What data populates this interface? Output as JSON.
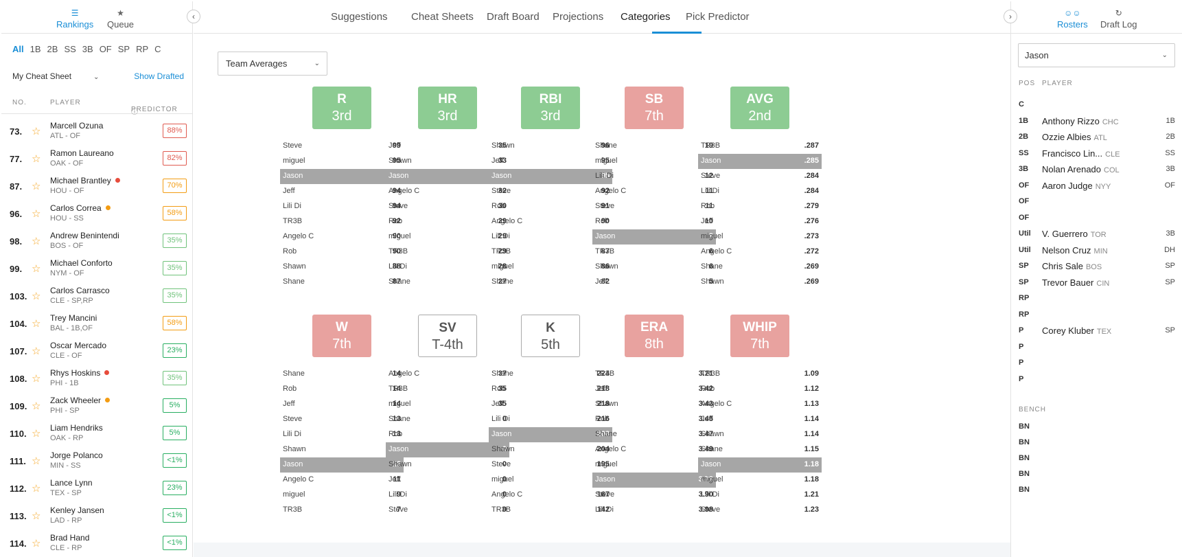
{
  "left": {
    "tabs": [
      {
        "label": "Rankings",
        "icon": "list-icon",
        "active": true
      },
      {
        "label": "Queue",
        "icon": "star-icon",
        "active": false
      }
    ],
    "positions": [
      "All",
      "1B",
      "2B",
      "SS",
      "3B",
      "OF",
      "SP",
      "RP",
      "C"
    ],
    "sheet_select": "My Cheat Sheet",
    "show_drafted": "Show Drafted",
    "col_no": "NO.",
    "col_player": "PLAYER",
    "col_predictor": "PREDICTOR",
    "players": [
      {
        "rank": "73.",
        "name": "Marcell Ozuna",
        "team": "ATL - OF",
        "pct": "88%",
        "level": "red",
        "dot": ""
      },
      {
        "rank": "77.",
        "name": "Ramon Laureano",
        "team": "OAK - OF",
        "pct": "82%",
        "level": "red",
        "dot": ""
      },
      {
        "rank": "87.",
        "name": "Michael Brantley",
        "team": "HOU - OF",
        "pct": "70%",
        "level": "orange",
        "dot": "red"
      },
      {
        "rank": "96.",
        "name": "Carlos Correa",
        "team": "HOU - SS",
        "pct": "58%",
        "level": "orange",
        "dot": "orange"
      },
      {
        "rank": "98.",
        "name": "Andrew Benintendi",
        "team": "BOS - OF",
        "pct": "35%",
        "level": "green-light",
        "dot": ""
      },
      {
        "rank": "99.",
        "name": "Michael Conforto",
        "team": "NYM - OF",
        "pct": "35%",
        "level": "green-light",
        "dot": ""
      },
      {
        "rank": "103.",
        "name": "Carlos Carrasco",
        "team": "CLE - SP,RP",
        "pct": "35%",
        "level": "green-light",
        "dot": ""
      },
      {
        "rank": "104.",
        "name": "Trey Mancini",
        "team": "BAL - 1B,OF",
        "pct": "58%",
        "level": "orange",
        "dot": ""
      },
      {
        "rank": "107.",
        "name": "Oscar Mercado",
        "team": "CLE - OF",
        "pct": "23%",
        "level": "green",
        "dot": ""
      },
      {
        "rank": "108.",
        "name": "Rhys Hoskins",
        "team": "PHI - 1B",
        "pct": "35%",
        "level": "green-light",
        "dot": "red"
      },
      {
        "rank": "109.",
        "name": "Zack Wheeler",
        "team": "PHI - SP",
        "pct": "5%",
        "level": "green",
        "dot": "orange"
      },
      {
        "rank": "110.",
        "name": "Liam Hendriks",
        "team": "OAK - RP",
        "pct": "5%",
        "level": "green",
        "dot": ""
      },
      {
        "rank": "111.",
        "name": "Jorge Polanco",
        "team": "MIN - SS",
        "pct": "<1%",
        "level": "green",
        "dot": ""
      },
      {
        "rank": "112.",
        "name": "Lance Lynn",
        "team": "TEX - SP",
        "pct": "23%",
        "level": "green",
        "dot": ""
      },
      {
        "rank": "113.",
        "name": "Kenley Jansen",
        "team": "LAD - RP",
        "pct": "<1%",
        "level": "green",
        "dot": ""
      },
      {
        "rank": "114.",
        "name": "Brad Hand",
        "team": "CLE - RP",
        "pct": "<1%",
        "level": "green",
        "dot": ""
      }
    ]
  },
  "nav": {
    "tabs": [
      "Suggestions",
      "Cheat Sheets",
      "Draft Board",
      "Projections",
      "Categories",
      "Pick Predictor"
    ],
    "active": "Categories"
  },
  "main": {
    "team_select": "Team Averages",
    "highlight_team": "Jason",
    "categories": [
      {
        "name": "R",
        "rank": "3rd",
        "status": "good",
        "rows": [
          [
            "Steve",
            "99"
          ],
          [
            "miguel",
            "95"
          ],
          [
            "Jason",
            "94"
          ],
          [
            "Jeff",
            "94"
          ],
          [
            "Lili Di",
            "94"
          ],
          [
            "TR3B",
            "92"
          ],
          [
            "Angelo C",
            "90"
          ],
          [
            "Rob",
            "90"
          ],
          [
            "Shawn",
            "88"
          ],
          [
            "Shane",
            "87"
          ]
        ]
      },
      {
        "name": "HR",
        "rank": "3rd",
        "status": "good",
        "rows": [
          [
            "Jeff",
            "35"
          ],
          [
            "Shawn",
            "33"
          ],
          [
            "Jason",
            "32"
          ],
          [
            "Angelo C",
            "32"
          ],
          [
            "Steve",
            "30"
          ],
          [
            "Rob",
            "29"
          ],
          [
            "miguel",
            "29"
          ],
          [
            "TR3B",
            "29"
          ],
          [
            "Lili Di",
            "28"
          ],
          [
            "Shane",
            "27"
          ]
        ]
      },
      {
        "name": "RBI",
        "rank": "3rd",
        "status": "good",
        "rows": [
          [
            "Shawn",
            "96"
          ],
          [
            "Jeff",
            "95"
          ],
          [
            "Jason",
            "95"
          ],
          [
            "Steve",
            "92"
          ],
          [
            "Rob",
            "91"
          ],
          [
            "Angelo C",
            "90"
          ],
          [
            "Lili Di",
            "88"
          ],
          [
            "TR3B",
            "87"
          ],
          [
            "miguel",
            "86"
          ],
          [
            "Shane",
            "82"
          ]
        ]
      },
      {
        "name": "SB",
        "rank": "7th",
        "status": "bad",
        "rows": [
          [
            "Shane",
            "19"
          ],
          [
            "miguel",
            "16"
          ],
          [
            "Lili Di",
            "12"
          ],
          [
            "Angelo C",
            "11"
          ],
          [
            "Steve",
            "11"
          ],
          [
            "Rob",
            "10"
          ],
          [
            "Jason",
            "8"
          ],
          [
            "TR3B",
            "6"
          ],
          [
            "Shawn",
            "6"
          ],
          [
            "Jeff",
            "5"
          ]
        ]
      },
      {
        "name": "AVG",
        "rank": "2nd",
        "status": "good",
        "rows": [
          [
            "TR3B",
            ".287"
          ],
          [
            "Jason",
            ".285"
          ],
          [
            "Steve",
            ".284"
          ],
          [
            "Lili Di",
            ".284"
          ],
          [
            "Rob",
            ".279"
          ],
          [
            "Jeff",
            ".276"
          ],
          [
            "miguel",
            ".273"
          ],
          [
            "Angelo C",
            ".272"
          ],
          [
            "Shane",
            ".269"
          ],
          [
            "Shawn",
            ".269"
          ]
        ]
      },
      {
        "name": "W",
        "rank": "7th",
        "status": "bad",
        "rows": [
          [
            "Shane",
            "14"
          ],
          [
            "Rob",
            "14"
          ],
          [
            "Jeff",
            "14"
          ],
          [
            "Steve",
            "13"
          ],
          [
            "Lili Di",
            "13"
          ],
          [
            "Shawn",
            "12"
          ],
          [
            "Jason",
            "12"
          ],
          [
            "Angelo C",
            "11"
          ],
          [
            "miguel",
            "9"
          ],
          [
            "TR3B",
            "7"
          ]
        ]
      },
      {
        "name": "SV",
        "rank": "T-4th",
        "status": "neutral",
        "rows": [
          [
            "Angelo C",
            "37"
          ],
          [
            "TR3B",
            "35"
          ],
          [
            "miguel",
            "35"
          ],
          [
            "Shane",
            "0"
          ],
          [
            "Rob",
            "0"
          ],
          [
            "Jason",
            "0"
          ],
          [
            "Shawn",
            "0"
          ],
          [
            "Jeff",
            "0"
          ],
          [
            "Lili Di",
            "0"
          ],
          [
            "Steve",
            "0"
          ]
        ]
      },
      {
        "name": "K",
        "rank": "5th",
        "status": "neutral",
        "rows": [
          [
            "Shane",
            "224"
          ],
          [
            "Rob",
            "218"
          ],
          [
            "Jeff",
            "218"
          ],
          [
            "Lili Di",
            "216"
          ],
          [
            "Jason",
            "208"
          ],
          [
            "Shawn",
            "204"
          ],
          [
            "Steve",
            "195"
          ],
          [
            "miguel",
            "174"
          ],
          [
            "Angelo C",
            "167"
          ],
          [
            "TR3B",
            "142"
          ]
        ]
      },
      {
        "name": "ERA",
        "rank": "8th",
        "status": "bad",
        "rows": [
          [
            "TR3B",
            "3.21"
          ],
          [
            "Jeff",
            "3.42"
          ],
          [
            "Shawn",
            "3.43"
          ],
          [
            "Rob",
            "3.46"
          ],
          [
            "Shane",
            "3.47"
          ],
          [
            "Angelo C",
            "3.49"
          ],
          [
            "miguel",
            "3.61"
          ],
          [
            "Jason",
            "3.73"
          ],
          [
            "Steve",
            "3.90"
          ],
          [
            "Lili Di",
            "3.98"
          ]
        ]
      },
      {
        "name": "WHIP",
        "rank": "7th",
        "status": "bad",
        "rows": [
          [
            "TR3B",
            "1.09"
          ],
          [
            "Rob",
            "1.12"
          ],
          [
            "Angelo C",
            "1.13"
          ],
          [
            "Jeff",
            "1.14"
          ],
          [
            "Shawn",
            "1.14"
          ],
          [
            "Shane",
            "1.15"
          ],
          [
            "Jason",
            "1.18"
          ],
          [
            "miguel",
            "1.18"
          ],
          [
            "Lili Di",
            "1.21"
          ],
          [
            "Steve",
            "1.23"
          ]
        ]
      }
    ]
  },
  "right": {
    "tabs": [
      {
        "label": "Rosters",
        "icon": "users-icon",
        "active": true
      },
      {
        "label": "Draft Log",
        "icon": "history-icon",
        "active": false
      }
    ],
    "owner_select": "Jason",
    "col_pos": "POS",
    "col_player": "PLAYER",
    "roster": [
      {
        "pos": "C",
        "name": "",
        "team": "",
        "elig": ""
      },
      {
        "pos": "1B",
        "name": "Anthony Rizzo",
        "team": "CHC",
        "elig": "1B"
      },
      {
        "pos": "2B",
        "name": "Ozzie Albies",
        "team": "ATL",
        "elig": "2B"
      },
      {
        "pos": "SS",
        "name": "Francisco Lin...",
        "team": "CLE",
        "elig": "SS"
      },
      {
        "pos": "3B",
        "name": "Nolan Arenado",
        "team": "COL",
        "elig": "3B"
      },
      {
        "pos": "OF",
        "name": "Aaron Judge",
        "team": "NYY",
        "elig": "OF"
      },
      {
        "pos": "OF",
        "name": "",
        "team": "",
        "elig": ""
      },
      {
        "pos": "OF",
        "name": "",
        "team": "",
        "elig": ""
      },
      {
        "pos": "Util",
        "name": "V. Guerrero",
        "team": "TOR",
        "elig": "3B"
      },
      {
        "pos": "Util",
        "name": "Nelson Cruz",
        "team": "MIN",
        "elig": "DH"
      },
      {
        "pos": "SP",
        "name": "Chris Sale",
        "team": "BOS",
        "elig": "SP"
      },
      {
        "pos": "SP",
        "name": "Trevor Bauer",
        "team": "CIN",
        "elig": "SP"
      },
      {
        "pos": "RP",
        "name": "",
        "team": "",
        "elig": ""
      },
      {
        "pos": "RP",
        "name": "",
        "team": "",
        "elig": ""
      },
      {
        "pos": "P",
        "name": "Corey Kluber",
        "team": "TEX",
        "elig": "SP"
      },
      {
        "pos": "P",
        "name": "",
        "team": "",
        "elig": ""
      },
      {
        "pos": "P",
        "name": "",
        "team": "",
        "elig": ""
      },
      {
        "pos": "P",
        "name": "",
        "team": "",
        "elig": ""
      }
    ],
    "bench_label": "BENCH",
    "bench": [
      "BN",
      "BN",
      "BN",
      "BN",
      "BN"
    ]
  },
  "colors": {
    "accent": "#1a8ed6",
    "good": "#8dcc93",
    "bad": "#e8a29f",
    "highlight": "#a6a6a6",
    "pct_red": "#e05a4f",
    "pct_orange": "#f39c12",
    "pct_green": "#27ae60",
    "pct_green_light": "#6fc27a",
    "dot_red": "#e74c3c",
    "dot_orange": "#f39c12"
  }
}
